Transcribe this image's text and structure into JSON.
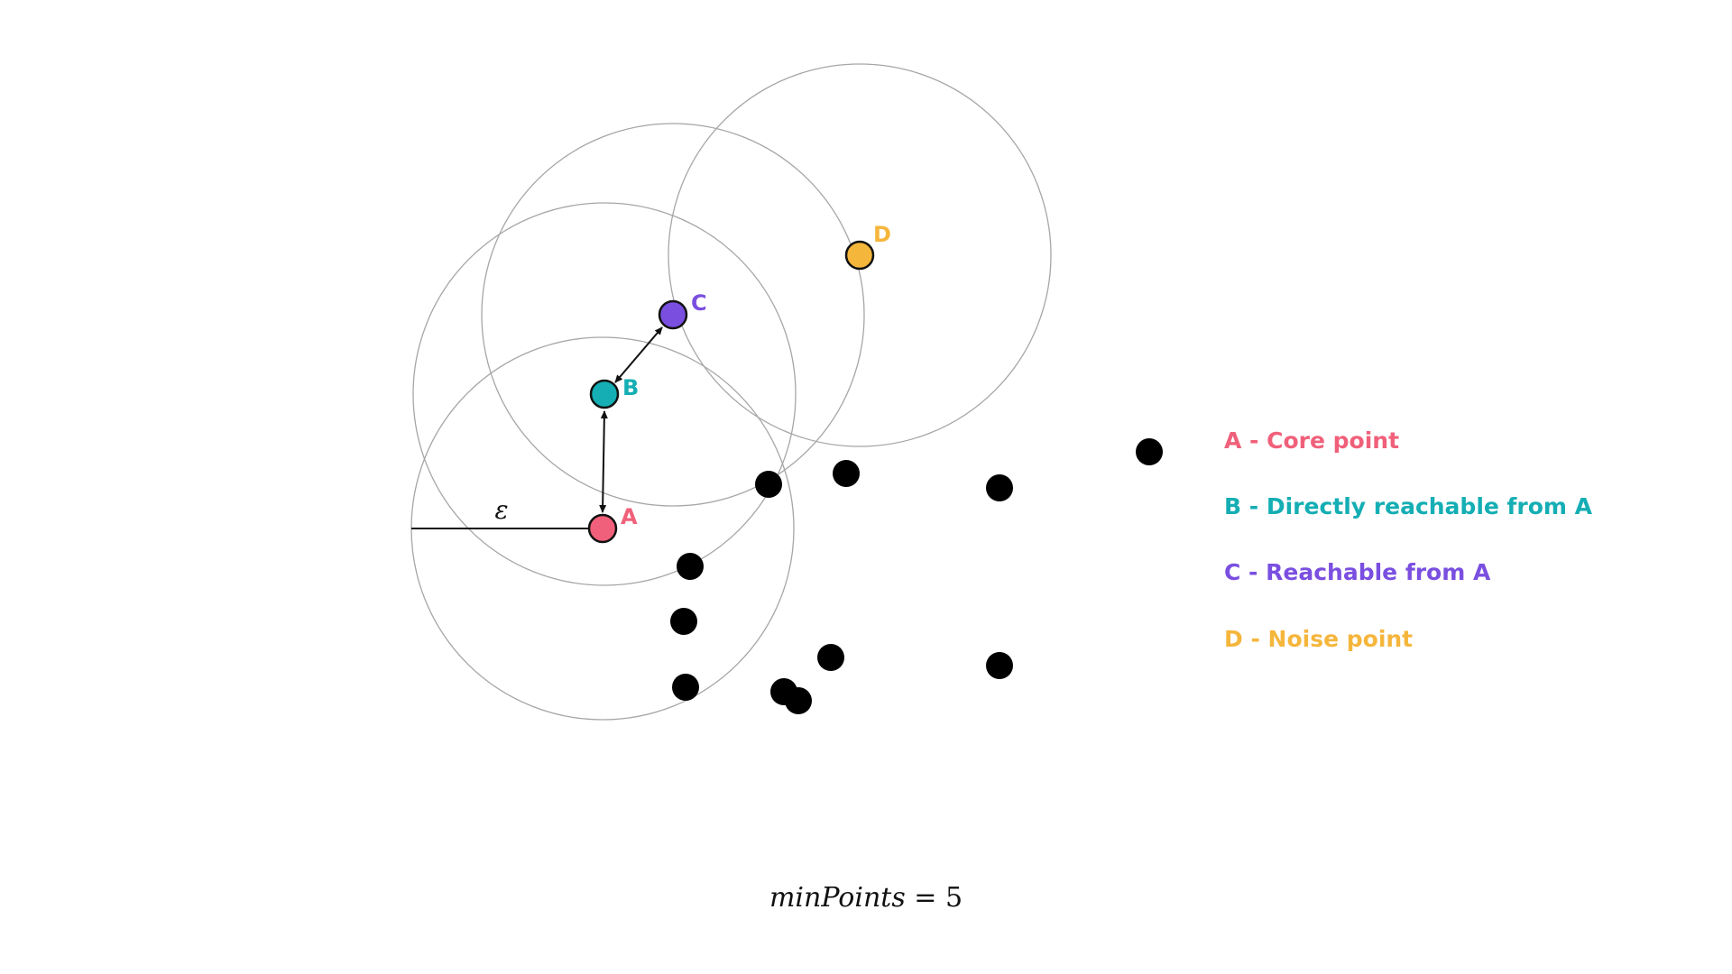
{
  "epsilon_label": "ε",
  "points": {
    "A": {
      "label": "A",
      "color": "#f0607a"
    },
    "B": {
      "label": "B",
      "color": "#14aeb4"
    },
    "C": {
      "label": "C",
      "color": "#7a4fe0"
    },
    "D": {
      "label": "D",
      "color": "#f5b63c"
    }
  },
  "legend": [
    {
      "text": "A - Core point",
      "color": "#f0607a"
    },
    {
      "text": "B - Directly reachable from A",
      "color": "#14aeb4"
    },
    {
      "text": "C - Reachable from A",
      "color": "#7a4fe0"
    },
    {
      "text": "D - Noise point",
      "color": "#f5b63c"
    }
  ],
  "formula": {
    "variable": "minPoints",
    "operator": "=",
    "value": "5"
  },
  "noise_point_color": "#000000"
}
